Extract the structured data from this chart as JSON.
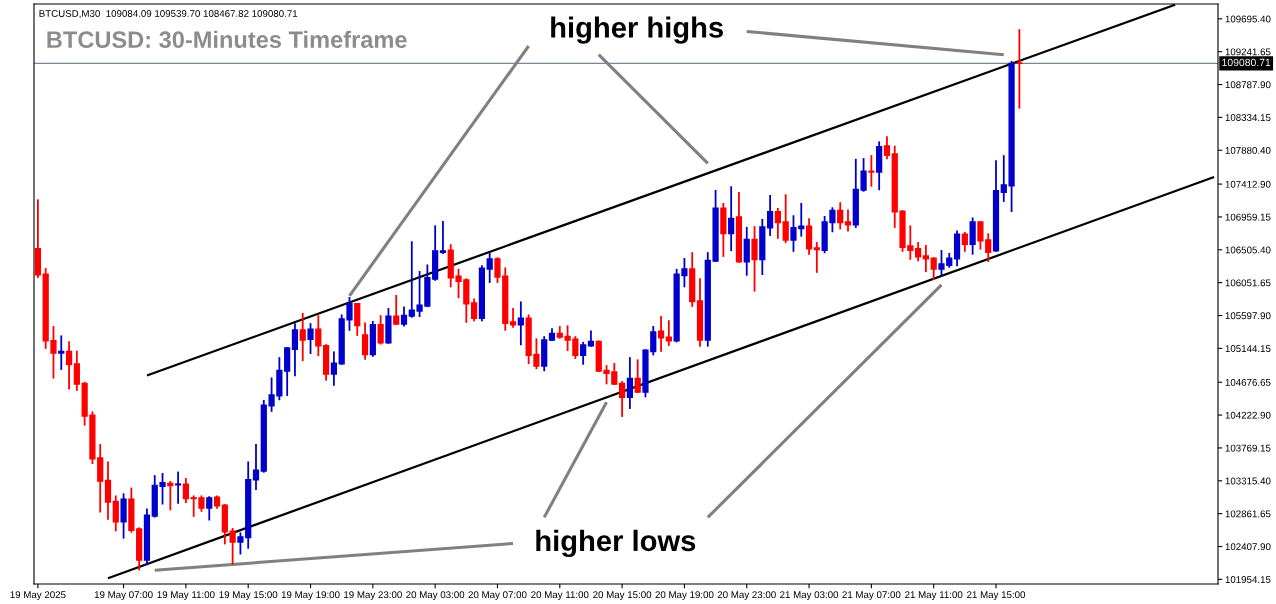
{
  "chart_data": {
    "type": "candlestick",
    "title": "BTCUSD: 30-Minutes Timeframe",
    "annotations": [
      "BTCUSD,M30  109084.09 109539.70 108467.82 109080.71",
      "higher highs",
      "higher lows"
    ],
    "colors": [
      "#ff0000",
      "#ff0000",
      "#ff0000",
      "#0000cd",
      "#ff0000",
      "#ff0000",
      "#ff0000",
      "#ff0000",
      "#ff0000",
      "#ff0000",
      "#ff0000",
      "#0000cd",
      "#ff0000",
      "#ff0000",
      "#0000cd",
      "#0000cd",
      "#0000cd",
      "#ff0000",
      "#0000cd",
      "#ff0000",
      "#ff0000",
      "#ff0000",
      "#0000cd",
      "#ff0000",
      "#ff0000",
      "#ff0000",
      "#0000cd",
      "#0000cd",
      "#0000cd",
      "#0000cd",
      "#0000cd",
      "#0000cd",
      "#0000cd",
      "#0000cd",
      "#ff0000",
      "#0000cd",
      "#ff0000",
      "#ff0000",
      "#0000cd",
      "#0000cd",
      "#0000cd",
      "#ff0000",
      "#ff0000",
      "#0000cd",
      "#ff0000",
      "#0000cd",
      "#ff0000",
      "#0000cd",
      "#0000cd",
      "#0000cd",
      "#0000cd",
      "#0000cd",
      "#0000cd",
      "#ff0000",
      "#ff0000",
      "#ff0000",
      "#ff0000",
      "#0000cd",
      "#0000cd",
      "#ff0000",
      "#ff0000",
      "#ff0000",
      "#0000cd",
      "#ff0000",
      "#ff0000",
      "#0000cd",
      "#0000cd",
      "#ff0000",
      "#ff0000",
      "#ff0000",
      "#0000cd",
      "#0000cd",
      "#ff0000",
      "#ff0000",
      "#ff0000",
      "#ff0000",
      "#0000cd",
      "#ff0000",
      "#0000cd",
      "#0000cd",
      "#ff0000",
      "#ff0000",
      "#0000cd",
      "#0000cd",
      "#ff0000",
      "#ff0000",
      "#0000cd",
      "#0000cd",
      "#ff0000",
      "#0000cd",
      "#ff0000",
      "#0000cd",
      "#ff0000",
      "#0000cd",
      "#0000cd",
      "#ff0000",
      "#ff0000",
      "#0000cd",
      "#0000cd",
      "#ff0000",
      "#ff0000",
      "#0000cd",
      "#0000cd",
      "#ff0000",
      "#ff0000",
      "#0000cd",
      "#0000cd",
      "#ff0000",
      "#0000cd",
      "#ff0000",
      "#ff0000",
      "#ff0000",
      "#ff0000",
      "#ff0000",
      "#ff0000",
      "#ff0000",
      "#0000cd",
      "#0000cd",
      "#0000cd",
      "#ff0000",
      "#0000cd",
      "#ff0000",
      "#ff0000",
      "#0000cd",
      "#0000cd",
      "#0000cd",
      "#ff0000",
      null,
      null,
      null,
      null,
      null,
      null,
      null,
      null,
      null,
      null,
      null,
      null,
      null,
      null,
      null,
      null,
      null,
      null,
      null,
      null,
      null,
      null,
      null,
      null,
      null
    ],
    "categories": [
      "19 May 2025",
      null,
      null,
      null,
      null,
      null,
      null,
      null,
      null,
      null,
      null,
      "19 May 07:00",
      null,
      null,
      null,
      null,
      null,
      null,
      null,
      "19 May 11:00",
      null,
      null,
      null,
      null,
      null,
      null,
      null,
      "19 May 15:00",
      null,
      null,
      null,
      null,
      null,
      null,
      null,
      "19 May 19:00",
      null,
      null,
      null,
      null,
      null,
      null,
      null,
      "19 May 23:00",
      null,
      null,
      null,
      null,
      null,
      null,
      null,
      "20 May 03:00",
      null,
      null,
      null,
      null,
      null,
      null,
      null,
      "20 May 07:00",
      null,
      null,
      null,
      null,
      null,
      null,
      null,
      "20 May 11:00",
      null,
      null,
      null,
      null,
      null,
      null,
      null,
      "20 May 15:00",
      null,
      null,
      null,
      null,
      null,
      null,
      null,
      "20 May 19:00",
      null,
      null,
      null,
      null,
      null,
      null,
      null,
      "20 May 23:00",
      null,
      null,
      null,
      null,
      null,
      null,
      null,
      "21 May 03:00",
      null,
      null,
      null,
      null,
      null,
      null,
      null,
      "21 May 07:00",
      null,
      null,
      null,
      null,
      null,
      null,
      null,
      "21 May 11:00",
      null,
      null,
      null,
      null,
      null,
      null,
      null,
      "21 May 15:00",
      null,
      null,
      null,
      null,
      null,
      null,
      null,
      null,
      null,
      null,
      null,
      null,
      null,
      null,
      null,
      null,
      null,
      null,
      null,
      null,
      null,
      null,
      null,
      null,
      null,
      null,
      null,
      null
    ],
    "ohlc": [
      [
        106520,
        107190,
        106130,
        106160
      ],
      [
        106170,
        106240,
        105150,
        105250
      ],
      [
        105250,
        105440,
        104740,
        105080
      ],
      [
        105080,
        105310,
        104860,
        105100
      ],
      [
        105100,
        105230,
        104590,
        104920
      ],
      [
        104930,
        105100,
        104570,
        104650
      ],
      [
        104660,
        104670,
        104090,
        104210
      ],
      [
        104220,
        104260,
        103560,
        103620
      ],
      [
        103630,
        103810,
        102890,
        103310
      ],
      [
        103320,
        103570,
        102790,
        103020
      ],
      [
        103030,
        103100,
        102630,
        102750
      ],
      [
        102750,
        103130,
        102530,
        103060
      ],
      [
        103060,
        103210,
        102610,
        102630
      ],
      [
        102650,
        102660,
        102090,
        102220
      ],
      [
        102220,
        102920,
        102170,
        102840
      ],
      [
        102830,
        103380,
        102820,
        103250
      ],
      [
        103240,
        103410,
        103000,
        103290
      ],
      [
        103280,
        103300,
        102920,
        103250
      ],
      [
        103260,
        103430,
        103010,
        103270
      ],
      [
        103270,
        103340,
        103020,
        103070
      ],
      [
        103080,
        103100,
        102830,
        103070
      ],
      [
        103080,
        103100,
        102900,
        102940
      ],
      [
        102940,
        103090,
        102780,
        103080
      ],
      [
        103090,
        103100,
        102940,
        102970
      ],
      [
        102980,
        102980,
        102450,
        102610
      ],
      [
        102620,
        102650,
        102170,
        102470
      ],
      [
        102470,
        102590,
        102310,
        102540
      ],
      [
        102530,
        103570,
        102390,
        103330
      ],
      [
        103330,
        103810,
        103200,
        103460
      ],
      [
        103450,
        104420,
        103440,
        104360
      ],
      [
        104350,
        104730,
        104280,
        104500
      ],
      [
        104490,
        105010,
        104440,
        104840
      ],
      [
        104830,
        105150,
        104500,
        105150
      ],
      [
        105130,
        105480,
        104770,
        105400
      ],
      [
        105400,
        105620,
        104980,
        105260
      ],
      [
        105270,
        105480,
        105080,
        105410
      ],
      [
        105410,
        105590,
        105050,
        105180
      ],
      [
        105180,
        105190,
        104710,
        104790
      ],
      [
        104790,
        105090,
        104640,
        104940
      ],
      [
        104930,
        105600,
        104930,
        105550
      ],
      [
        105540,
        105840,
        105400,
        105760
      ],
      [
        105760,
        105760,
        105330,
        105460
      ],
      [
        105330,
        105490,
        105000,
        105060
      ],
      [
        105060,
        105510,
        105040,
        105470
      ],
      [
        105470,
        105590,
        105210,
        105220
      ],
      [
        105220,
        105690,
        105220,
        105590
      ],
      [
        105590,
        105870,
        105480,
        105480
      ],
      [
        105480,
        105710,
        105460,
        105600
      ],
      [
        105590,
        106610,
        105580,
        105670
      ],
      [
        105660,
        106200,
        105590,
        105740
      ],
      [
        105730,
        106290,
        105730,
        106120
      ],
      [
        106100,
        106830,
        106090,
        106490
      ],
      [
        106470,
        106890,
        106460,
        106490
      ],
      [
        106500,
        106570,
        106000,
        106120
      ],
      [
        106140,
        106230,
        105850,
        106070
      ],
      [
        106090,
        106100,
        105510,
        105760
      ],
      [
        105770,
        105820,
        105530,
        105560
      ],
      [
        105560,
        106280,
        105530,
        106250
      ],
      [
        106240,
        106450,
        106060,
        106380
      ],
      [
        106380,
        106390,
        106060,
        106130
      ],
      [
        106140,
        106250,
        105400,
        105490
      ],
      [
        105510,
        105690,
        105440,
        105470
      ],
      [
        105470,
        105780,
        105200,
        105560
      ],
      [
        105560,
        105600,
        104940,
        105050
      ],
      [
        105060,
        105270,
        104870,
        104900
      ],
      [
        104900,
        105300,
        104840,
        105260
      ],
      [
        105260,
        105410,
        105260,
        105350
      ],
      [
        105350,
        105440,
        105290,
        105300
      ],
      [
        105310,
        105450,
        105120,
        105260
      ],
      [
        105270,
        105300,
        105010,
        105050
      ],
      [
        105050,
        105220,
        104930,
        105190
      ],
      [
        105180,
        105380,
        105180,
        105240
      ],
      [
        105240,
        105240,
        104830,
        104830
      ],
      [
        104840,
        104900,
        104660,
        104800
      ],
      [
        104820,
        104930,
        104650,
        104650
      ],
      [
        104660,
        104680,
        104210,
        104470
      ],
      [
        104470,
        105010,
        104320,
        104730
      ],
      [
        104730,
        104980,
        104540,
        104540
      ],
      [
        104540,
        105120,
        104480,
        105120
      ],
      [
        105100,
        105440,
        105060,
        105370
      ],
      [
        105380,
        105580,
        105110,
        105290
      ],
      [
        105300,
        105520,
        105190,
        105250
      ],
      [
        105250,
        106230,
        105240,
        106170
      ],
      [
        106150,
        106380,
        106000,
        106240
      ],
      [
        106240,
        106460,
        105730,
        105790
      ],
      [
        105800,
        106100,
        105180,
        105260
      ],
      [
        105260,
        106460,
        105180,
        106360
      ],
      [
        106350,
        107320,
        106350,
        107080
      ],
      [
        107080,
        107140,
        106420,
        106730
      ],
      [
        106730,
        107370,
        106500,
        106940
      ],
      [
        106960,
        107290,
        106340,
        106340
      ],
      [
        106340,
        106810,
        106160,
        106650
      ],
      [
        106650,
        106820,
        105940,
        106370
      ],
      [
        106370,
        106920,
        106170,
        106820
      ],
      [
        106810,
        107250,
        106710,
        107030
      ],
      [
        107030,
        107070,
        106670,
        106880
      ],
      [
        106890,
        107260,
        106610,
        106640
      ],
      [
        106640,
        106970,
        106490,
        106810
      ],
      [
        106800,
        107140,
        106700,
        106830
      ],
      [
        106830,
        106930,
        106450,
        106520
      ],
      [
        106530,
        106600,
        106200,
        106510
      ],
      [
        106500,
        106960,
        106470,
        106890
      ],
      [
        106880,
        107080,
        106760,
        107050
      ],
      [
        107050,
        107150,
        106800,
        106880
      ],
      [
        106890,
        107050,
        106770,
        106850
      ],
      [
        106850,
        107750,
        106820,
        107340
      ],
      [
        107330,
        107760,
        107320,
        107590
      ],
      [
        107590,
        107800,
        107390,
        107580
      ],
      [
        107580,
        107990,
        107340,
        107930
      ],
      [
        107940,
        108060,
        107770,
        107810
      ],
      [
        107830,
        107930,
        106820,
        107030
      ],
      [
        107040,
        107040,
        106490,
        106540
      ],
      [
        106560,
        106830,
        106380,
        106500
      ],
      [
        106520,
        106600,
        106360,
        106410
      ],
      [
        106420,
        106560,
        106210,
        106380
      ],
      [
        106390,
        106390,
        106100,
        106240
      ],
      [
        106240,
        106490,
        106160,
        106310
      ],
      [
        106290,
        106450,
        106270,
        106390
      ],
      [
        106380,
        106760,
        106290,
        106720
      ],
      [
        106720,
        106740,
        106490,
        106580
      ],
      [
        106580,
        106940,
        106450,
        106890
      ],
      [
        106890,
        106890,
        106520,
        106630
      ],
      [
        106640,
        106720,
        106350,
        106470
      ],
      [
        106490,
        107730,
        106490,
        107320
      ],
      [
        107300,
        107800,
        107180,
        107400
      ],
      [
        107390,
        109100,
        107040,
        109080
      ],
      [
        109084.09,
        109539.7,
        108467.82,
        109080.71
      ],
      null,
      null,
      null,
      null,
      null,
      null,
      null,
      null,
      null,
      null,
      null,
      null,
      null,
      null,
      null,
      null,
      null,
      null,
      null,
      null,
      null,
      null,
      null,
      null,
      null
    ],
    "series": [
      {
        "type": "line",
        "color": "#000000",
        "values": [
          null,
          null,
          null,
          null,
          null,
          null,
          null,
          null,
          null,
          null,
          null,
          null,
          null,
          null,
          104770,
          null,
          null,
          null,
          null,
          null,
          null,
          null,
          null,
          null,
          null,
          null,
          null,
          null,
          null,
          null,
          null,
          null,
          null,
          null,
          null,
          null,
          null,
          null,
          null,
          null,
          null,
          null,
          null,
          null,
          null,
          null,
          null,
          null,
          null,
          null,
          null,
          null,
          null,
          null,
          null,
          null,
          null,
          null,
          null,
          null,
          null,
          null,
          null,
          null,
          null,
          null,
          null,
          null,
          null,
          null,
          null,
          null,
          null,
          null,
          null,
          null,
          null,
          null,
          null,
          null,
          null,
          null,
          null,
          null,
          null,
          null,
          null,
          null,
          null,
          null,
          null,
          null,
          null,
          null,
          null,
          null,
          null,
          null,
          null,
          null,
          null,
          null,
          null,
          null,
          null,
          null,
          null,
          null,
          null,
          null,
          null,
          null,
          null,
          null,
          null,
          null,
          null,
          null,
          null,
          null,
          null,
          null,
          null,
          null,
          null,
          null,
          null,
          null,
          null,
          null,
          null,
          null,
          null,
          null,
          null,
          null,
          null,
          null,
          null,
          null,
          null,
          null,
          null,
          null,
          null,
          null,
          109890,
          null,
          null,
          null,
          null,
          null
        ]
      },
      {
        "type": "line",
        "color": "#000000",
        "values": [
          null,
          null,
          null,
          null,
          null,
          null,
          null,
          null,
          null,
          101970,
          null,
          null,
          null,
          null,
          null,
          null,
          null,
          null,
          null,
          null,
          null,
          null,
          null,
          null,
          null,
          null,
          null,
          null,
          null,
          null,
          null,
          null,
          null,
          null,
          null,
          null,
          null,
          null,
          null,
          null,
          null,
          null,
          null,
          null,
          null,
          null,
          null,
          null,
          null,
          null,
          null,
          null,
          null,
          null,
          null,
          null,
          null,
          null,
          null,
          null,
          null,
          null,
          null,
          null,
          null,
          null,
          null,
          null,
          null,
          null,
          null,
          null,
          null,
          null,
          null,
          null,
          null,
          null,
          null,
          null,
          null,
          null,
          null,
          null,
          null,
          null,
          null,
          null,
          null,
          null,
          null,
          null,
          null,
          null,
          null,
          null,
          null,
          null,
          null,
          null,
          null,
          null,
          null,
          null,
          null,
          null,
          null,
          null,
          null,
          null,
          null,
          null,
          null,
          null,
          null,
          null,
          null,
          null,
          null,
          null,
          null,
          null,
          null,
          null,
          null,
          null,
          null,
          null,
          null,
          null,
          null,
          null,
          null,
          null,
          null,
          null,
          null,
          null,
          null,
          null,
          null,
          null,
          null,
          null,
          null,
          null,
          null,
          null,
          null,
          null,
          null,
          107510
        ]
      },
      {
        "type": "line",
        "color": "#808080",
        "values": [
          null,
          null,
          null,
          null,
          null,
          null,
          null,
          null,
          null,
          null,
          null,
          null,
          null,
          null,
          null,
          null,
          null,
          null,
          null,
          null,
          null,
          null,
          null,
          null,
          null,
          null,
          null,
          null,
          null,
          null,
          null,
          null,
          null,
          null,
          null,
          null,
          null,
          null,
          null,
          null,
          105870,
          null,
          null,
          null,
          null,
          null,
          null,
          null,
          null,
          null,
          null,
          null,
          null,
          null,
          null,
          null,
          null,
          null,
          null,
          null,
          null,
          null,
          null,
          109320,
          null,
          null,
          null,
          null,
          null,
          null,
          null,
          null,
          null,
          null,
          null,
          null,
          null,
          null,
          null,
          null,
          null,
          null,
          null,
          null,
          null,
          null,
          null,
          null,
          null,
          null,
          null,
          null,
          null,
          null,
          null,
          null,
          null,
          null,
          null,
          null,
          null,
          null,
          null,
          null,
          null,
          null,
          null,
          null,
          null,
          null,
          null,
          null,
          null,
          null,
          null,
          null,
          null,
          null,
          null,
          null,
          null,
          null,
          null,
          null,
          null,
          null,
          null,
          null,
          null,
          null,
          null,
          null,
          null,
          null,
          null,
          null,
          null,
          null,
          null,
          null,
          null,
          null,
          null,
          null,
          null,
          null,
          null,
          null,
          null,
          null,
          null,
          null
        ]
      },
      {
        "type": "line",
        "color": "#808080",
        "values": [
          null,
          null,
          null,
          null,
          null,
          null,
          null,
          null,
          null,
          null,
          null,
          null,
          null,
          null,
          null,
          null,
          null,
          null,
          null,
          null,
          null,
          null,
          null,
          null,
          null,
          null,
          null,
          null,
          null,
          null,
          null,
          null,
          null,
          null,
          null,
          null,
          null,
          null,
          null,
          null,
          null,
          null,
          null,
          null,
          null,
          null,
          null,
          null,
          null,
          null,
          null,
          null,
          null,
          null,
          null,
          null,
          null,
          null,
          null,
          null,
          null,
          null,
          null,
          null,
          null,
          null,
          null,
          null,
          null,
          null,
          null,
          null,
          109200,
          null,
          null,
          null,
          null,
          null,
          null,
          null,
          null,
          null,
          null,
          null,
          null,
          null,
          107700,
          null,
          null,
          null,
          null,
          null,
          null,
          null,
          null,
          null,
          null,
          null,
          null,
          null,
          null,
          null,
          null,
          null,
          null,
          null,
          null,
          null,
          null,
          null,
          null,
          null,
          null,
          null,
          null,
          null,
          null,
          null,
          null,
          null,
          null,
          null,
          null,
          null,
          null,
          null,
          null,
          null,
          null,
          null,
          null,
          null,
          null,
          null,
          null,
          null,
          null,
          null,
          null,
          null,
          null,
          null,
          null,
          null,
          null,
          null,
          null,
          null,
          null,
          null,
          null,
          null
        ]
      },
      {
        "type": "line",
        "color": "#808080",
        "values": [
          null,
          null,
          null,
          null,
          null,
          null,
          null,
          null,
          null,
          null,
          null,
          null,
          null,
          null,
          null,
          null,
          null,
          null,
          null,
          null,
          null,
          null,
          null,
          null,
          null,
          null,
          null,
          null,
          null,
          null,
          null,
          null,
          null,
          null,
          null,
          null,
          null,
          null,
          null,
          null,
          null,
          null,
          null,
          null,
          null,
          null,
          null,
          null,
          null,
          null,
          null,
          null,
          null,
          null,
          null,
          null,
          null,
          null,
          null,
          null,
          null,
          null,
          null,
          null,
          null,
          null,
          null,
          null,
          null,
          null,
          null,
          null,
          null,
          null,
          null,
          null,
          null,
          null,
          null,
          null,
          null,
          null,
          null,
          null,
          null,
          null,
          null,
          null,
          null,
          null,
          null,
          109520,
          null,
          null,
          null,
          null,
          null,
          null,
          null,
          null,
          null,
          null,
          null,
          null,
          null,
          null,
          null,
          null,
          null,
          null,
          null,
          null,
          null,
          null,
          null,
          null,
          null,
          null,
          null,
          null,
          null,
          null,
          null,
          null,
          109200,
          null,
          null,
          null,
          null,
          null,
          null,
          null,
          null,
          null,
          null,
          null,
          null,
          null,
          null,
          null,
          null,
          null,
          null,
          null,
          null,
          null,
          null,
          null,
          null,
          null,
          null,
          null
        ]
      },
      {
        "type": "line",
        "color": "#808080",
        "values": [
          null,
          null,
          null,
          null,
          null,
          null,
          null,
          null,
          null,
          null,
          null,
          null,
          null,
          null,
          null,
          102080,
          null,
          null,
          null,
          null,
          null,
          null,
          null,
          null,
          null,
          null,
          null,
          null,
          null,
          null,
          null,
          null,
          null,
          null,
          null,
          null,
          null,
          null,
          null,
          null,
          null,
          null,
          null,
          null,
          null,
          null,
          null,
          null,
          null,
          null,
          null,
          null,
          null,
          null,
          null,
          null,
          null,
          null,
          null,
          null,
          null,
          102450,
          null,
          null,
          null,
          null,
          null,
          null,
          null,
          null,
          null,
          null,
          null,
          null,
          null,
          null,
          null,
          null,
          null,
          null,
          null,
          null,
          null,
          null,
          null,
          null,
          null,
          null,
          null,
          null,
          null,
          null,
          null,
          null,
          null,
          null,
          null,
          null,
          null,
          null,
          null,
          null,
          null,
          null,
          null,
          null,
          null,
          null,
          null,
          null,
          null,
          null,
          null,
          null,
          null,
          null,
          null,
          null,
          null,
          null,
          null,
          null,
          null,
          null,
          null,
          null,
          null,
          null,
          null,
          null,
          null,
          null,
          null,
          null,
          null,
          null,
          null,
          null,
          null,
          null,
          null,
          null,
          null,
          null,
          null,
          null,
          null,
          null,
          null,
          null,
          null,
          null
        ]
      },
      {
        "type": "line",
        "color": "#808080",
        "values": [
          null,
          null,
          null,
          null,
          null,
          null,
          null,
          null,
          null,
          null,
          null,
          null,
          null,
          null,
          null,
          null,
          null,
          null,
          null,
          null,
          null,
          null,
          null,
          null,
          null,
          null,
          null,
          null,
          null,
          null,
          null,
          null,
          null,
          null,
          null,
          null,
          null,
          null,
          null,
          null,
          null,
          null,
          null,
          null,
          null,
          null,
          null,
          null,
          null,
          null,
          null,
          null,
          null,
          null,
          null,
          null,
          null,
          null,
          null,
          null,
          null,
          null,
          null,
          null,
          null,
          102810,
          null,
          null,
          null,
          null,
          null,
          null,
          null,
          104400,
          null,
          null,
          null,
          null,
          null,
          null,
          null,
          null,
          null,
          null,
          null,
          null,
          null,
          null,
          null,
          null,
          null,
          null,
          null,
          null,
          null,
          null,
          null,
          null,
          null,
          null,
          null,
          null,
          null,
          null,
          null,
          null,
          null,
          null,
          null,
          null,
          null,
          null,
          null,
          null,
          null,
          null,
          null,
          null,
          null,
          null,
          null,
          null,
          null,
          null,
          null,
          null,
          null,
          null,
          null,
          null,
          null,
          null,
          null,
          null,
          null,
          null,
          null,
          null,
          null,
          null,
          null,
          null,
          null,
          null,
          null,
          null,
          null,
          null,
          null,
          null,
          null,
          null
        ]
      },
      {
        "type": "line",
        "color": "#808080",
        "values": [
          null,
          null,
          null,
          null,
          null,
          null,
          null,
          null,
          null,
          null,
          null,
          null,
          null,
          null,
          null,
          null,
          null,
          null,
          null,
          null,
          null,
          null,
          null,
          null,
          null,
          null,
          null,
          null,
          null,
          null,
          null,
          null,
          null,
          null,
          null,
          null,
          null,
          null,
          null,
          null,
          null,
          null,
          null,
          null,
          null,
          null,
          null,
          null,
          null,
          null,
          null,
          null,
          null,
          null,
          null,
          null,
          null,
          null,
          null,
          null,
          null,
          null,
          null,
          null,
          null,
          null,
          null,
          null,
          null,
          null,
          null,
          null,
          null,
          null,
          null,
          null,
          null,
          null,
          null,
          null,
          null,
          null,
          null,
          null,
          null,
          null,
          102810,
          null,
          null,
          null,
          null,
          null,
          null,
          null,
          null,
          null,
          null,
          null,
          null,
          null,
          null,
          null,
          null,
          null,
          null,
          null,
          null,
          null,
          null,
          null,
          null,
          null,
          null,
          null,
          null,
          null,
          106020,
          null,
          null,
          null,
          null,
          null,
          null,
          null,
          null,
          null,
          null,
          null,
          null,
          null,
          null,
          null,
          null,
          null,
          null,
          null,
          null,
          null,
          null,
          null,
          null,
          null,
          null,
          null,
          null,
          null,
          null,
          null,
          null,
          null,
          null,
          null
        ]
      }
    ],
    "ref_lines": [
      {
        "axis": "y",
        "value": 109080.71,
        "label": "109080.71",
        "color": "#778899"
      }
    ],
    "ylim": [
      101890,
      109900
    ],
    "yticks": [
      {
        "value": 101954.15,
        "label": "101954.15"
      },
      {
        "value": 102407.9,
        "label": "102407.90"
      },
      {
        "value": 102861.65,
        "label": "102861.65"
      },
      {
        "value": 103315.4,
        "label": "103315.40"
      },
      {
        "value": 103769.15,
        "label": "103769.15"
      },
      {
        "value": 104222.9,
        "label": "104222.90"
      },
      {
        "value": 104676.65,
        "label": "104676.65"
      },
      {
        "value": 105144.15,
        "label": "105144.15"
      },
      {
        "value": 105597.9,
        "label": "105597.90"
      },
      {
        "value": 106051.65,
        "label": "106051.65"
      },
      {
        "value": 106505.4,
        "label": "106505.40"
      },
      {
        "value": 106959.15,
        "label": "106959.15"
      },
      {
        "value": 107412.9,
        "label": "107412.90"
      },
      {
        "value": 107880.4,
        "label": "107880.40"
      },
      {
        "value": 108334.15,
        "label": "108334.15"
      },
      {
        "value": 108787.9,
        "label": "108787.90"
      },
      {
        "value": 109241.65,
        "label": "109241.65"
      },
      {
        "value": 109695.4,
        "label": "109695.40"
      }
    ]
  }
}
